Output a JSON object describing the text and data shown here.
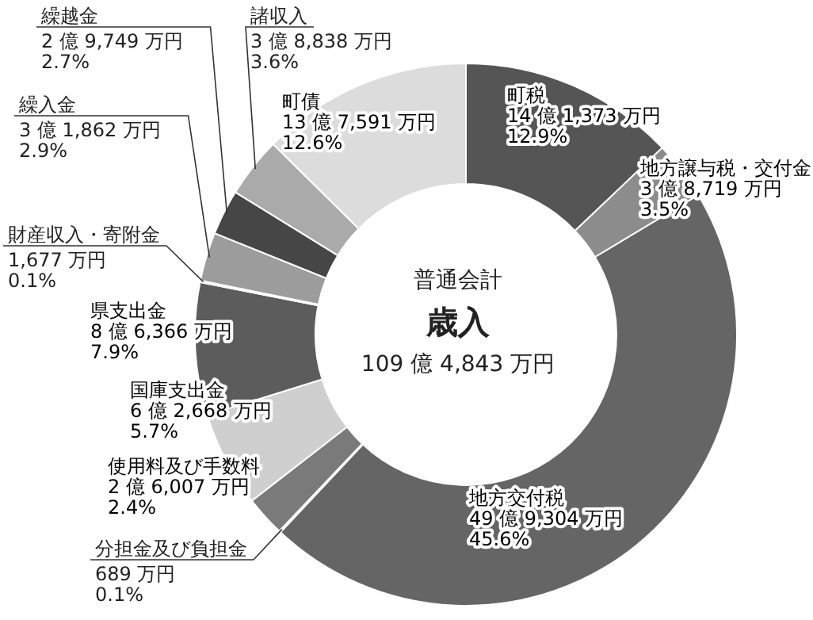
{
  "chart_data": {
    "type": "donut",
    "title": "歳入",
    "subtitle": "普通会計",
    "annotations": [
      "109 億 4,843 万円"
    ],
    "categories": [
      "町税",
      "地方譲与税・交付金",
      "地方交付税",
      "分担金及び負担金",
      "使用料及び手数料",
      "国庫支出金",
      "県支出金",
      "財産収入・寄附金",
      "繰入金",
      "繰越金",
      "諸収入",
      "町債"
    ],
    "values": [
      12.9,
      3.5,
      45.6,
      0.1,
      2.4,
      5.7,
      7.9,
      0.1,
      2.9,
      2.7,
      3.6,
      12.6
    ],
    "value_labels": [
      "14 億 1,373 万円\n12.9%",
      "3 億 8,719 万円\n3.5%",
      "49 億 9,304 万円\n45.6%",
      "689 万円\n0.1%",
      "2 億 6,007 万円\n2.4%",
      "6 億 2,668 万円\n5.7%",
      "8 億 6,366 万円\n7.9%",
      "1,677 万円\n0.1%",
      "3 億 1,862 万円\n2.9%",
      "2 億 9,749 万円\n2.7%",
      "3 億 8,838 万円\n3.6%",
      "13 億 7,591 万円\n12.6%"
    ],
    "colors": [
      "#555555",
      "#8c8c8c",
      "#656565",
      "#9a9a9a",
      "#7a7a7a",
      "#cfcfcf",
      "#5c5c5c",
      "#b0b0b0",
      "#9c9c9c",
      "#464646",
      "#aaaaaa",
      "#dcdcdc"
    ],
    "legend": false
  }
}
